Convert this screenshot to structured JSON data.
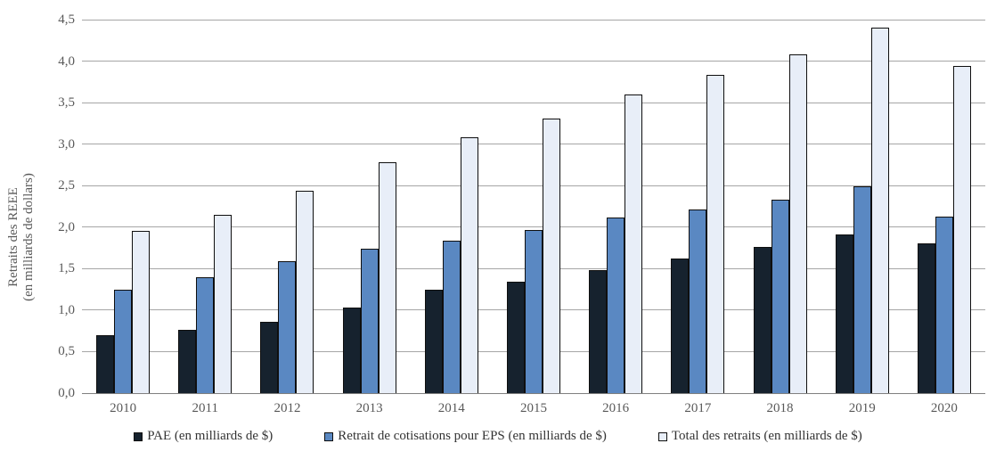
{
  "chart_data": {
    "type": "bar",
    "title": "",
    "categories": [
      "2010",
      "2011",
      "2012",
      "2013",
      "2014",
      "2015",
      "2016",
      "2017",
      "2018",
      "2019",
      "2020"
    ],
    "series": [
      {
        "key": "pae",
        "name": "PAE (en milliards de $)",
        "color": "#16222e",
        "values": [
          0.7,
          0.76,
          0.86,
          1.03,
          1.25,
          1.34,
          1.48,
          1.62,
          1.76,
          1.91,
          1.8
        ]
      },
      {
        "key": "eps",
        "name": "Retrait de cotisations pour EPS (en milliards de $)",
        "color": "#5a88c2",
        "values": [
          1.25,
          1.4,
          1.59,
          1.74,
          1.84,
          1.97,
          2.12,
          2.21,
          2.33,
          2.49,
          2.13
        ]
      },
      {
        "key": "total",
        "name": "Total des retraits (en milliards de $)",
        "color": "#e8eef8",
        "values": [
          1.95,
          2.15,
          2.44,
          2.78,
          3.08,
          3.31,
          3.6,
          3.83,
          4.08,
          4.4,
          3.94
        ]
      }
    ],
    "xlabel": "",
    "ylabel_line1": "Retraits des REEE",
    "ylabel_line2": "(en milliards de dollars)",
    "ylim": [
      0,
      4.5
    ],
    "ytick_step": 0.5,
    "ytick_labels": [
      "0,0",
      "0,5",
      "1,0",
      "1,5",
      "2,0",
      "2,5",
      "3,0",
      "3,5",
      "4,0",
      "4,5"
    ],
    "grid": true,
    "legend_position": "bottom",
    "colors": {
      "gridline": "#a6a6a6",
      "axis_line": "#808080",
      "tick_text": "#595959",
      "legend_text": "#333333",
      "bar_border": "#0f0f0f"
    }
  }
}
